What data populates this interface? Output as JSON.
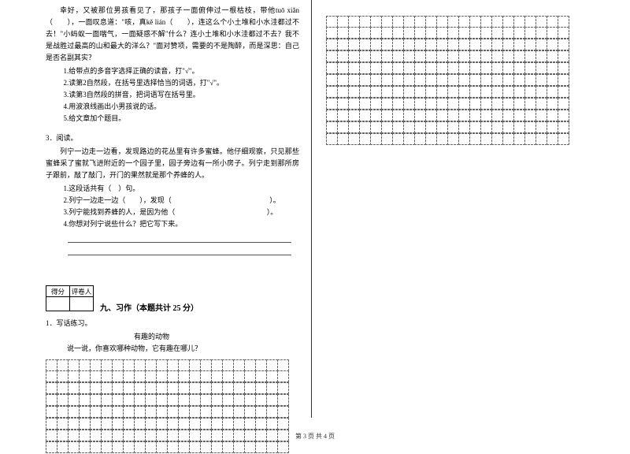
{
  "leftColumn": {
    "passage1": {
      "p1": "幸好，又被那位男孩看见了，那孩子一面俯伸过一根枯枝，带他tuō xiǎn（　　），一面叹息道：\"咳，真kě lián（　　），连这么个小土堆和小水洼都过不去！\"小蚂蚁一面喘气，一面疑惑不解\"什么？连小土堆和小水洼都过不去？我不是战胜过最高的山和最大的洋么？\"面对赞项，需要的不是陶醉，而是深思：自己是否名副其实？",
      "q1": "1.给带点的多音字选择正确的读音，打\"√\"。",
      "q2": "2.读第2自然段，在括号里选择恰当的词语，打\"√\"。",
      "q3": "3.读第3自然段的拼音，把词语写在括号里。",
      "q4": "4.用波浪线画出小男孩说的话。",
      "q5": "5.给文章加个题目。"
    },
    "item3": "3．阅读。",
    "passage2": {
      "p1": "列宁一边走一边看，发现路边的花丛里有许多蜜蜂。他仔细观察，只见那些蜜蜂采了蜜就飞进附近的一个园子里，园子旁边有一所小房子。列宁走到那所房子跟前，敲了敲门，开门的果然就是那个养蜂的人。",
      "q1": "1.这段话共有（　）句。",
      "q2a": "2.列宁一边走一边（　　），发现（",
      "q2b": "）。",
      "q3a": "3.列宁能找到养蜂的人，是因为他（",
      "q3b": "）。",
      "q4": "4.你想对列宁说些什么？把它写下来。"
    },
    "scoreBox": {
      "h1": "得分",
      "h2": "评卷人"
    },
    "section9": "九、习作（本题共计 25 分）",
    "writing": {
      "label": "1．写话练习。",
      "title": "有趣的动物",
      "prompt": "说一说，你喜欢哪种动物，它有趣在哪儿？"
    },
    "gridLeft": {
      "rows": 8,
      "cols": 22
    }
  },
  "rightColumn": {
    "gridRight": {
      "rows": 11,
      "cols": 22
    }
  },
  "footer": "第 3 页 共 4 页"
}
